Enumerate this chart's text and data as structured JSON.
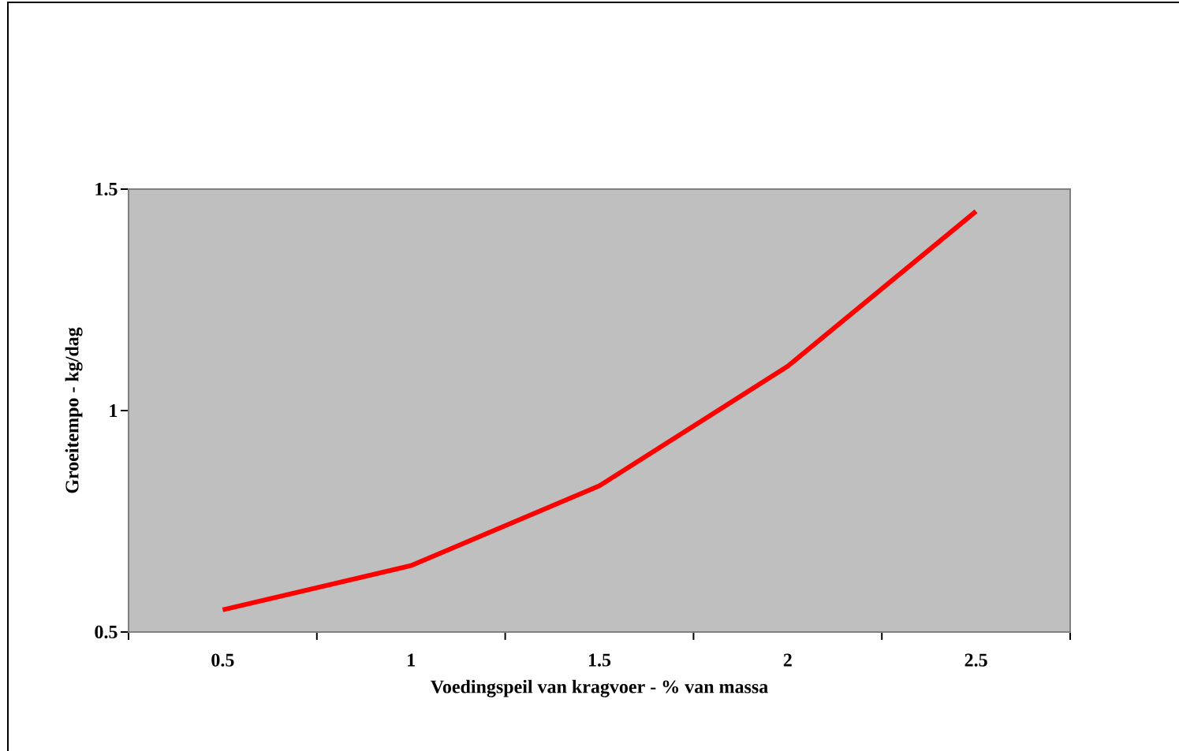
{
  "chart_data": {
    "type": "line",
    "xlabel": "Voedingspeil van kragvoer - % van massa",
    "ylabel": "Groeitempo - kg/dag",
    "categories": [
      "0.5",
      "1",
      "1.5",
      "2",
      "2.5"
    ],
    "series": [
      {
        "color": "#ff0000",
        "values": [
          0.55,
          0.65,
          0.83,
          1.1,
          1.45
        ]
      }
    ],
    "ylim": [
      0.5,
      1.5
    ],
    "yticks": [
      0.5,
      1,
      1.5
    ],
    "marker": "none",
    "line_style": "solid"
  }
}
